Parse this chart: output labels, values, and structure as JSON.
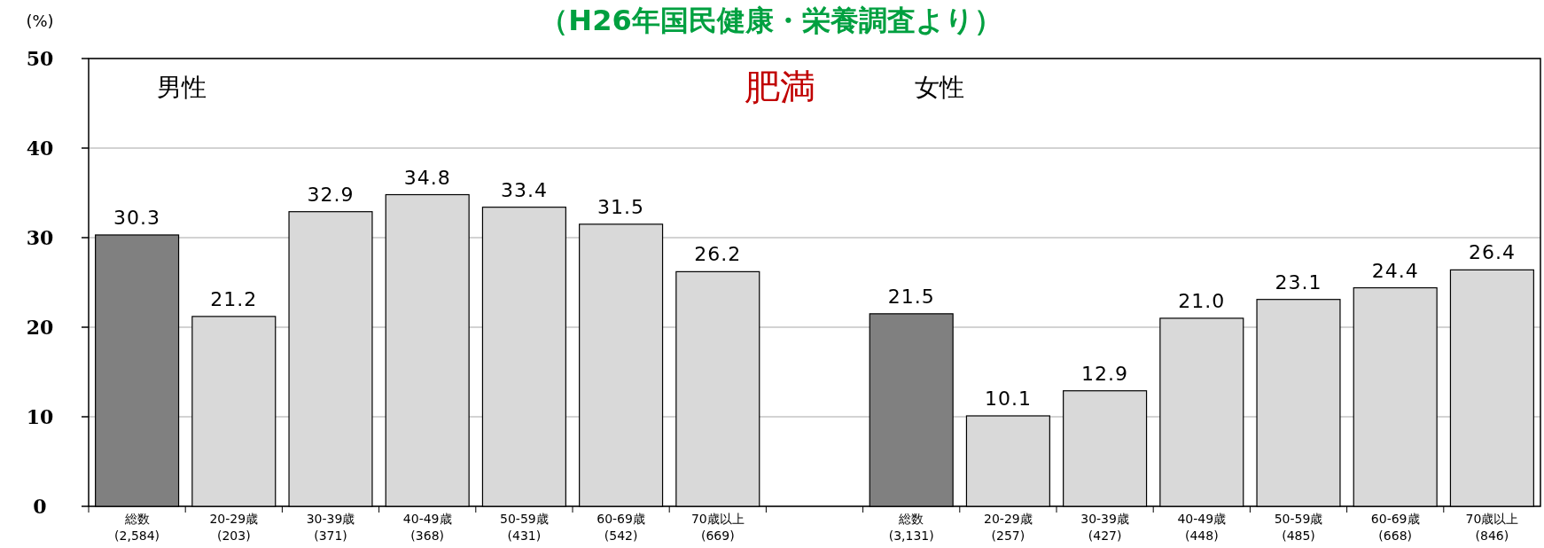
{
  "chart_data": {
    "type": "bar",
    "title": "（H26年国民健康・栄養調査より）",
    "subtitle": "肥満",
    "ylabel": "(%)",
    "annotations": [
      "男性",
      "女性"
    ],
    "categories": [
      "総数\n(2,584)",
      "20-29歳\n(203)",
      "30-39歳\n(371)",
      "40-49歳\n(368)",
      "50-59歳\n(431)",
      "60-69歳\n(542)",
      "70歳以上\n(669)",
      null,
      "総数\n(3,131)",
      "20-29歳\n(257)",
      "30-39歳\n(427)",
      "40-49歳\n(448)",
      "50-59歳\n(485)",
      "60-69歳\n(668)",
      "70歳以上\n(846)"
    ],
    "values": [
      30.3,
      21.2,
      32.9,
      34.8,
      33.4,
      31.5,
      26.2,
      null,
      21.5,
      10.1,
      12.9,
      21.0,
      23.1,
      24.4,
      26.4
    ],
    "colors": [
      "#808080",
      "#d9d9d9",
      "#d9d9d9",
      "#d9d9d9",
      "#d9d9d9",
      "#d9d9d9",
      "#d9d9d9",
      null,
      "#808080",
      "#d9d9d9",
      "#d9d9d9",
      "#d9d9d9",
      "#d9d9d9",
      "#d9d9d9",
      "#d9d9d9"
    ],
    "ylim": [
      0,
      50
    ],
    "yticks": [
      0,
      10,
      20,
      30,
      40,
      50
    ],
    "value_labels": [
      "30.3",
      "21.2",
      "32.9",
      "34.8",
      "33.4",
      "31.5",
      "26.2",
      null,
      "21.5",
      "10.1",
      "12.9",
      "21.0",
      "23.1",
      "24.4",
      "26.4"
    ],
    "grid": "y"
  }
}
